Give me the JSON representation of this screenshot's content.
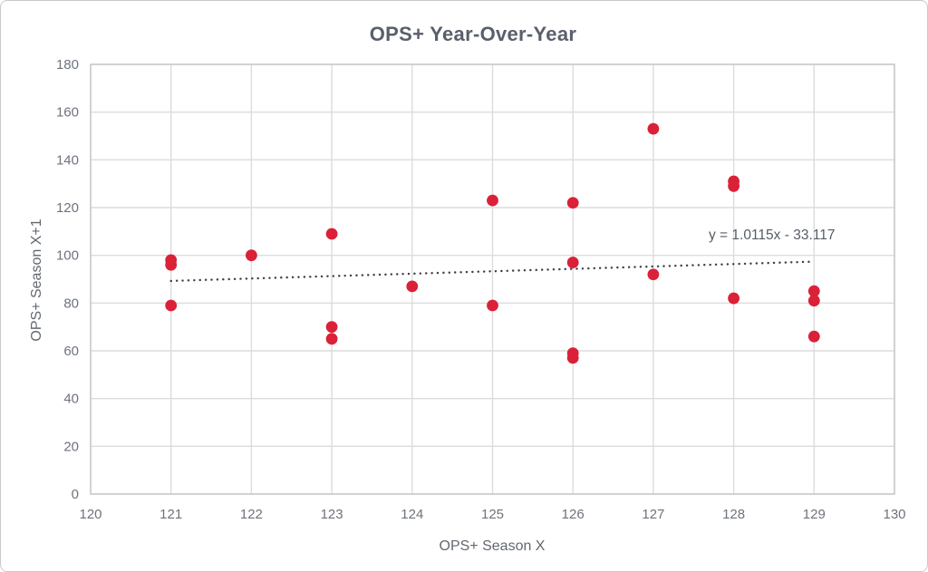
{
  "chart_data": {
    "type": "scatter",
    "title": "OPS+ Year-Over-Year",
    "xlabel": "OPS+ Season X",
    "ylabel": "OPS+ Season X+1",
    "xlim": [
      120,
      130
    ],
    "ylim": [
      0,
      180
    ],
    "x_ticks": [
      120,
      121,
      122,
      123,
      124,
      125,
      126,
      127,
      128,
      129,
      130
    ],
    "y_ticks": [
      0,
      20,
      40,
      60,
      80,
      100,
      120,
      140,
      160,
      180
    ],
    "grid": true,
    "legend": false,
    "point_color": "#da2138",
    "trendline_color": "#3c4046",
    "points": [
      [
        121,
        98
      ],
      [
        121,
        96
      ],
      [
        121,
        79
      ],
      [
        122,
        100
      ],
      [
        123,
        109
      ],
      [
        123,
        70
      ],
      [
        123,
        65
      ],
      [
        124,
        87
      ],
      [
        125,
        123
      ],
      [
        125,
        79
      ],
      [
        126,
        122
      ],
      [
        126,
        97
      ],
      [
        126,
        59
      ],
      [
        126,
        57
      ],
      [
        127,
        153
      ],
      [
        127,
        92
      ],
      [
        128,
        131
      ],
      [
        128,
        129
      ],
      [
        128,
        82
      ],
      [
        129,
        85
      ],
      [
        129,
        81
      ],
      [
        129,
        66
      ]
    ],
    "trendline": {
      "slope": 1.0115,
      "intercept": -33.117,
      "x_start": 121,
      "x_end": 129,
      "equation_label": "y = 1.0115x - 33.117"
    }
  }
}
